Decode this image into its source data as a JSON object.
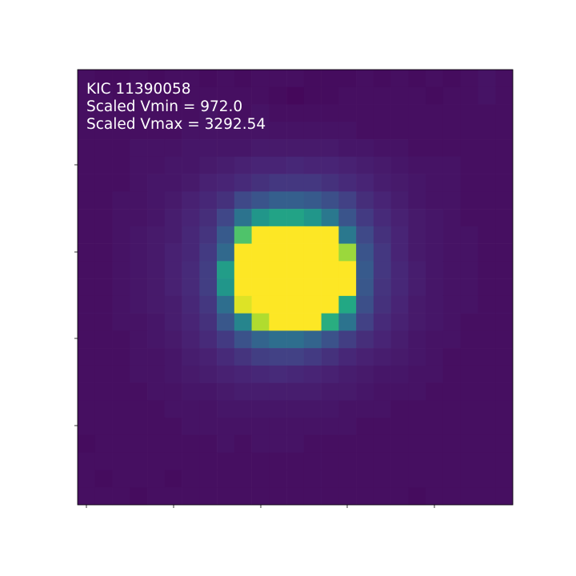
{
  "annotations": {
    "target": "KIC 11390058",
    "vmin_text": "Scaled Vmin = 972.0",
    "vmax_text": "Scaled Vmax = 3292.54"
  },
  "colormap": "viridis",
  "image_grid": {
    "rows": 25,
    "cols": 25,
    "values": [
      [
        0.04,
        0.03,
        0.03,
        0.04,
        0.03,
        0.04,
        0.04,
        0.03,
        0.04,
        0.03,
        0.04,
        0.04,
        0.04,
        0.03,
        0.03,
        0.03,
        0.04,
        0.03,
        0.04,
        0.03,
        0.04,
        0.03,
        0.04,
        0.05,
        0.04
      ],
      [
        0.04,
        0.04,
        0.03,
        0.04,
        0.04,
        0.03,
        0.04,
        0.04,
        0.04,
        0.04,
        0.04,
        0.03,
        0.02,
        0.03,
        0.03,
        0.04,
        0.04,
        0.04,
        0.04,
        0.04,
        0.03,
        0.04,
        0.04,
        0.05,
        0.04
      ],
      [
        0.04,
        0.04,
        0.04,
        0.04,
        0.04,
        0.04,
        0.04,
        0.05,
        0.04,
        0.04,
        0.05,
        0.04,
        0.04,
        0.04,
        0.04,
        0.04,
        0.04,
        0.04,
        0.04,
        0.04,
        0.04,
        0.04,
        0.04,
        0.04,
        0.04
      ],
      [
        0.04,
        0.04,
        0.04,
        0.04,
        0.04,
        0.04,
        0.05,
        0.05,
        0.05,
        0.05,
        0.05,
        0.05,
        0.05,
        0.05,
        0.05,
        0.05,
        0.04,
        0.04,
        0.04,
        0.04,
        0.04,
        0.04,
        0.04,
        0.04,
        0.04
      ],
      [
        0.04,
        0.04,
        0.04,
        0.05,
        0.05,
        0.05,
        0.06,
        0.06,
        0.06,
        0.06,
        0.07,
        0.07,
        0.07,
        0.07,
        0.07,
        0.06,
        0.06,
        0.05,
        0.05,
        0.04,
        0.04,
        0.04,
        0.04,
        0.04,
        0.04
      ],
      [
        0.04,
        0.04,
        0.04,
        0.05,
        0.05,
        0.06,
        0.06,
        0.07,
        0.08,
        0.09,
        0.1,
        0.1,
        0.11,
        0.1,
        0.1,
        0.09,
        0.08,
        0.07,
        0.06,
        0.05,
        0.05,
        0.05,
        0.04,
        0.04,
        0.04
      ],
      [
        0.04,
        0.04,
        0.04,
        0.05,
        0.06,
        0.06,
        0.07,
        0.09,
        0.1,
        0.12,
        0.14,
        0.16,
        0.16,
        0.16,
        0.14,
        0.12,
        0.1,
        0.08,
        0.07,
        0.06,
        0.05,
        0.05,
        0.04,
        0.04,
        0.04
      ],
      [
        0.04,
        0.04,
        0.05,
        0.05,
        0.06,
        0.07,
        0.09,
        0.11,
        0.14,
        0.22,
        0.26,
        0.3,
        0.3,
        0.28,
        0.24,
        0.19,
        0.13,
        0.1,
        0.08,
        0.06,
        0.05,
        0.05,
        0.04,
        0.04,
        0.04
      ],
      [
        0.04,
        0.04,
        0.05,
        0.05,
        0.06,
        0.08,
        0.1,
        0.13,
        0.21,
        0.38,
        0.52,
        0.58,
        0.58,
        0.52,
        0.4,
        0.26,
        0.17,
        0.12,
        0.09,
        0.07,
        0.06,
        0.05,
        0.04,
        0.04,
        0.04
      ],
      [
        0.04,
        0.04,
        0.05,
        0.06,
        0.07,
        0.08,
        0.11,
        0.15,
        0.28,
        0.72,
        1.0,
        1.0,
        1.0,
        1.0,
        1.0,
        0.4,
        0.22,
        0.14,
        0.1,
        0.07,
        0.06,
        0.05,
        0.05,
        0.04,
        0.04
      ],
      [
        0.04,
        0.04,
        0.05,
        0.06,
        0.07,
        0.09,
        0.11,
        0.17,
        0.34,
        1.0,
        1.0,
        1.0,
        1.0,
        1.0,
        1.0,
        0.85,
        0.26,
        0.16,
        0.1,
        0.07,
        0.06,
        0.05,
        0.05,
        0.04,
        0.04
      ],
      [
        0.04,
        0.04,
        0.05,
        0.06,
        0.07,
        0.09,
        0.12,
        0.18,
        0.55,
        1.0,
        1.0,
        1.0,
        1.0,
        1.0,
        1.0,
        1.0,
        0.28,
        0.16,
        0.11,
        0.08,
        0.06,
        0.05,
        0.05,
        0.04,
        0.04
      ],
      [
        0.04,
        0.04,
        0.05,
        0.06,
        0.07,
        0.09,
        0.12,
        0.18,
        0.52,
        1.0,
        1.0,
        1.0,
        1.0,
        1.0,
        1.0,
        1.0,
        0.27,
        0.15,
        0.11,
        0.08,
        0.06,
        0.05,
        0.05,
        0.04,
        0.04
      ],
      [
        0.04,
        0.04,
        0.05,
        0.06,
        0.07,
        0.08,
        0.11,
        0.16,
        0.36,
        0.95,
        1.0,
        1.0,
        1.0,
        1.0,
        1.0,
        0.6,
        0.24,
        0.14,
        0.1,
        0.07,
        0.06,
        0.05,
        0.05,
        0.04,
        0.04
      ],
      [
        0.04,
        0.04,
        0.05,
        0.05,
        0.06,
        0.08,
        0.1,
        0.14,
        0.27,
        0.45,
        0.88,
        1.0,
        1.0,
        1.0,
        0.62,
        0.38,
        0.19,
        0.12,
        0.09,
        0.07,
        0.06,
        0.05,
        0.04,
        0.04,
        0.04
      ],
      [
        0.04,
        0.04,
        0.04,
        0.05,
        0.06,
        0.07,
        0.09,
        0.12,
        0.17,
        0.25,
        0.32,
        0.36,
        0.36,
        0.32,
        0.25,
        0.18,
        0.13,
        0.1,
        0.08,
        0.06,
        0.05,
        0.05,
        0.04,
        0.04,
        0.04
      ],
      [
        0.04,
        0.04,
        0.04,
        0.05,
        0.05,
        0.06,
        0.08,
        0.09,
        0.12,
        0.15,
        0.18,
        0.19,
        0.19,
        0.17,
        0.14,
        0.11,
        0.09,
        0.08,
        0.07,
        0.06,
        0.05,
        0.04,
        0.04,
        0.04,
        0.04
      ],
      [
        0.04,
        0.04,
        0.04,
        0.05,
        0.05,
        0.06,
        0.07,
        0.08,
        0.09,
        0.1,
        0.11,
        0.12,
        0.11,
        0.1,
        0.09,
        0.08,
        0.07,
        0.06,
        0.06,
        0.05,
        0.05,
        0.04,
        0.04,
        0.04,
        0.04
      ],
      [
        0.04,
        0.04,
        0.04,
        0.04,
        0.05,
        0.05,
        0.06,
        0.06,
        0.07,
        0.08,
        0.08,
        0.08,
        0.08,
        0.08,
        0.07,
        0.07,
        0.06,
        0.05,
        0.05,
        0.05,
        0.04,
        0.04,
        0.04,
        0.04,
        0.04
      ],
      [
        0.04,
        0.04,
        0.04,
        0.04,
        0.04,
        0.05,
        0.05,
        0.05,
        0.06,
        0.06,
        0.06,
        0.06,
        0.06,
        0.06,
        0.06,
        0.05,
        0.05,
        0.05,
        0.04,
        0.04,
        0.04,
        0.04,
        0.04,
        0.04,
        0.04
      ],
      [
        0.04,
        0.04,
        0.04,
        0.04,
        0.04,
        0.04,
        0.05,
        0.05,
        0.05,
        0.05,
        0.05,
        0.05,
        0.05,
        0.05,
        0.05,
        0.05,
        0.04,
        0.04,
        0.04,
        0.04,
        0.04,
        0.04,
        0.04,
        0.04,
        0.04
      ],
      [
        0.03,
        0.04,
        0.04,
        0.04,
        0.04,
        0.04,
        0.04,
        0.04,
        0.05,
        0.04,
        0.05,
        0.05,
        0.05,
        0.04,
        0.04,
        0.04,
        0.04,
        0.04,
        0.04,
        0.04,
        0.04,
        0.04,
        0.04,
        0.04,
        0.04
      ],
      [
        0.04,
        0.04,
        0.04,
        0.04,
        0.04,
        0.04,
        0.04,
        0.04,
        0.04,
        0.04,
        0.04,
        0.04,
        0.04,
        0.04,
        0.04,
        0.04,
        0.04,
        0.04,
        0.04,
        0.04,
        0.04,
        0.04,
        0.04,
        0.04,
        0.04
      ],
      [
        0.04,
        0.03,
        0.04,
        0.04,
        0.04,
        0.03,
        0.04,
        0.04,
        0.04,
        0.04,
        0.04,
        0.04,
        0.04,
        0.04,
        0.04,
        0.04,
        0.04,
        0.04,
        0.04,
        0.04,
        0.04,
        0.04,
        0.04,
        0.04,
        0.04
      ],
      [
        0.04,
        0.04,
        0.04,
        0.03,
        0.04,
        0.04,
        0.04,
        0.04,
        0.04,
        0.04,
        0.04,
        0.04,
        0.04,
        0.04,
        0.04,
        0.04,
        0.04,
        0.04,
        0.04,
        0.03,
        0.04,
        0.04,
        0.04,
        0.04,
        0.04
      ]
    ]
  }
}
